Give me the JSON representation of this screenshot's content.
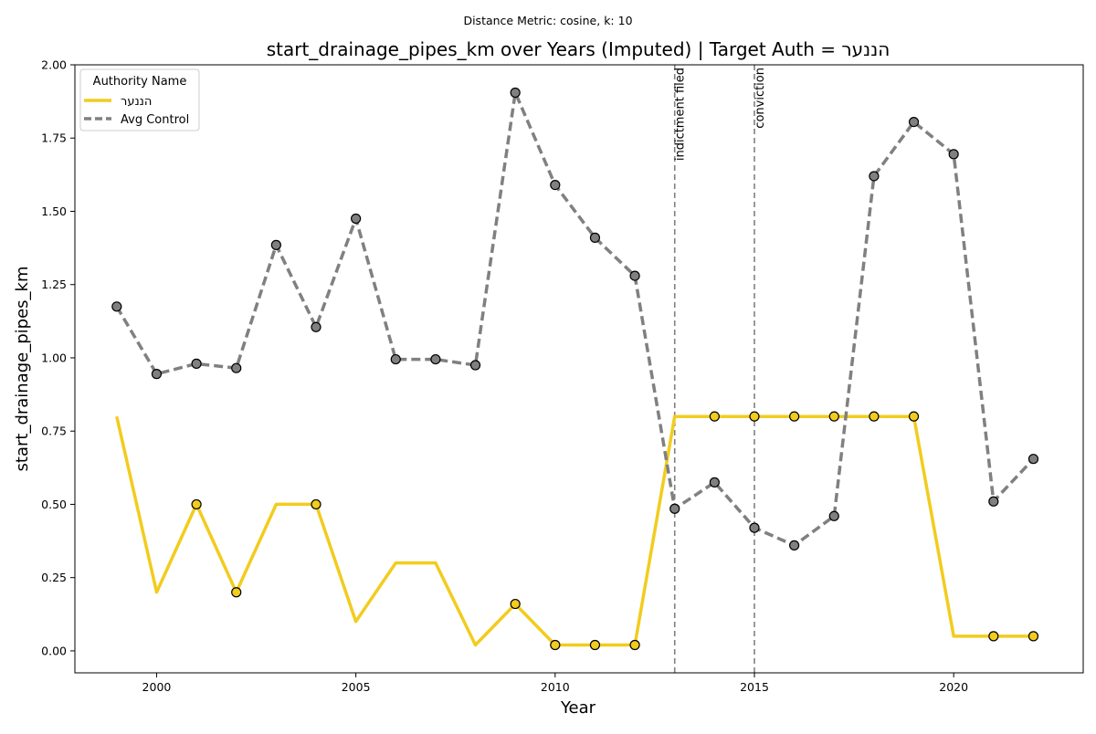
{
  "chart_data": {
    "type": "line",
    "suptitle": "Distance Metric: cosine, k: 10",
    "title": "start_drainage_pipes_km over Years (Imputed) | Target Auth = הננער",
    "xlabel": "Year",
    "ylabel": "start_drainage_pipes_km",
    "xlim": [
      1997.95,
      2023.25
    ],
    "ylim": [
      -0.075,
      2.0
    ],
    "x_ticks": [
      2000,
      2005,
      2010,
      2015,
      2020
    ],
    "y_ticks": [
      0.0,
      0.25,
      0.5,
      0.75,
      1.0,
      1.25,
      1.5,
      1.75,
      2.0
    ],
    "y_tick_labels": [
      "0.00",
      "0.25",
      "0.50",
      "0.75",
      "1.00",
      "1.25",
      "1.50",
      "1.75",
      "2.00"
    ],
    "grid": false,
    "legend": {
      "title": "Authority Name",
      "placement": "top-left"
    },
    "series": [
      {
        "name": "הננער",
        "color": "#f2cc1e",
        "style": "solid",
        "x": [
          1999,
          2000,
          2001,
          2002,
          2003,
          2004,
          2005,
          2006,
          2007,
          2008,
          2009,
          2010,
          2011,
          2012,
          2013,
          2014,
          2015,
          2016,
          2017,
          2018,
          2019,
          2020,
          2021,
          2022
        ],
        "y": [
          0.8,
          0.2,
          0.5,
          0.2,
          0.5,
          0.5,
          0.1,
          0.3,
          0.3,
          0.02,
          0.16,
          0.02,
          0.02,
          0.02,
          0.8,
          0.8,
          0.8,
          0.8,
          0.8,
          0.8,
          0.8,
          0.05,
          0.05,
          0.05
        ],
        "markers_at": [
          2001,
          2002,
          2004,
          2009,
          2010,
          2011,
          2012,
          2014,
          2015,
          2016,
          2017,
          2018,
          2019,
          2021,
          2022
        ]
      },
      {
        "name": "Avg Control",
        "color": "#808080",
        "style": "dashed",
        "x": [
          1999,
          2000,
          2001,
          2002,
          2003,
          2004,
          2005,
          2006,
          2007,
          2008,
          2009,
          2010,
          2011,
          2012,
          2013,
          2014,
          2015,
          2016,
          2017,
          2018,
          2019,
          2020,
          2021,
          2022
        ],
        "y": [
          1.175,
          0.945,
          0.98,
          0.965,
          1.385,
          1.105,
          1.475,
          0.995,
          0.995,
          0.975,
          1.905,
          1.59,
          1.41,
          1.28,
          0.485,
          0.575,
          0.42,
          0.36,
          0.46,
          1.62,
          1.805,
          1.695,
          0.51,
          0.655
        ],
        "markers_at": [
          1999,
          2000,
          2001,
          2002,
          2003,
          2004,
          2005,
          2006,
          2007,
          2008,
          2009,
          2010,
          2011,
          2012,
          2013,
          2014,
          2015,
          2016,
          2017,
          2018,
          2019,
          2020,
          2021,
          2022
        ]
      }
    ],
    "annotations": [
      {
        "x": 2013,
        "label": "indictment filed"
      },
      {
        "x": 2015,
        "label": "conviction"
      }
    ]
  }
}
